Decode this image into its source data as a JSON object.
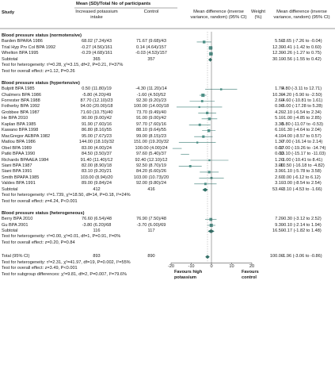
{
  "header": {
    "study": "Study",
    "group": "Mean (SD)/Total No of participants",
    "increased": "Increased potassium intake",
    "control": "Control",
    "md": "Mean difference (inverse variance, random) (95% CI)",
    "weight": "Weight (%)",
    "md2": "Mean difference (inverse variance, random) (95% CI)"
  },
  "chart_data": {
    "type": "forest",
    "x_axis": {
      "ticks": [
        -20,
        -10,
        0,
        10,
        20
      ],
      "xlim": [
        -20,
        20
      ]
    },
    "favours_left": "Favours high potassium",
    "favours_right": "Favours control",
    "groups": [
      {
        "title": "Blood pressure status (normotensive)",
        "studies": [
          {
            "name": "Barden BPARA 1986",
            "inc": "68.02 (7.24)/43",
            "ctl": "71.67 (9.68)/43",
            "weight": "5.50",
            "ci_text": "-3.65 (-7.26 to -0.04)",
            "md": -3.65,
            "lo": -7.26,
            "hi": -0.04,
            "w": 5.5
          },
          {
            "name": "Trial Hyp Prv Col BPA 1992",
            "inc": "-0.27 (4.56)/161",
            "ctl": "0.14 (4.64)/157",
            "weight": "12.30",
            "ci_text": "-0.41 (-1.42 to 0.60)",
            "md": -0.41,
            "lo": -1.42,
            "hi": 0.6,
            "w": 12.3
          },
          {
            "name": "Whelton BPA 1995",
            "inc": "-0.29 (4.68)/161",
            "ctl": "-0.03 (4.53)/157",
            "weight": "12.30",
            "ci_text": "-0.26 (-1.27 to 0.75)",
            "md": -0.26,
            "lo": -1.27,
            "hi": 0.75,
            "w": 12.3
          }
        ],
        "subtotal": {
          "label": "Subtotal",
          "inc": "365",
          "ctl": "357",
          "weight": "30.10",
          "ci_text": "-0.56 (-1.55 to 0.42)",
          "md": -0.56,
          "lo": -1.55,
          "hi": 0.42
        },
        "heterogeneity": "Test for heterogeneity: τ²=0.28, χ²=3.15, df=2, P=0.21, I²=37%",
        "overall": "Test for overall effect: z=1.12, P=0.26"
      },
      {
        "title": "Blood pressure status (hypertensive)",
        "studies": [
          {
            "name": "Bulpitt BPA 1985",
            "inc": "0.50 (11.80)/19",
            "ctl": "-4.30 (11.20)/14",
            "weight": "1.70",
            "ci_text": "4.80 (-3.11 to 12.71)",
            "md": 4.8,
            "lo": -3.11,
            "hi": 12.71,
            "w": 1.7
          },
          {
            "name": "Chalmers BPA 1986",
            "inc": "-5.80 (4.20)/49",
            "ctl": "-1.60 (4.50)/52",
            "weight": "10.30",
            "ci_text": "-4.20 (-5.90 to -2.50)",
            "md": -4.2,
            "lo": -5.9,
            "hi": -2.5,
            "w": 10.3
          },
          {
            "name": "Forrester BPA 1988",
            "inc": "87.70 (12.10)/23",
            "ctl": "92.30 (9.20)/23",
            "weight": "2.60",
            "ci_text": "-4.60 (-10.81 to 1.61)",
            "md": -4.6,
            "lo": -10.81,
            "hi": 1.61,
            "w": 2.6
          },
          {
            "name": "Fotherby BPA 1992",
            "inc": "94.00 (20.00)/18",
            "ctl": "100.00 (14.00)/18",
            "weight": "0.90",
            "ci_text": "-6.00 (-17.28 to 5.28)",
            "md": -6.0,
            "lo": -17.28,
            "hi": 5.28,
            "w": 0.9
          },
          {
            "name": "Grobbee BPA 1987",
            "inc": "71.60 (10.75)/40",
            "ctl": "73.70 (9.49)/40",
            "weight": "4.20",
            "ci_text": "-2.10 (-6.54 to 2.34)",
            "md": -2.1,
            "lo": -6.54,
            "hi": 2.34,
            "w": 4.2
          },
          {
            "name": "He BPA 2010",
            "inc": "90.00 (9.00)/42",
            "ctl": "91.00 (9.00)/42",
            "weight": "5.10",
            "ci_text": "-1.00 (-4.85 to 2.85)",
            "md": -1.0,
            "lo": -4.85,
            "hi": 2.85,
            "w": 5.1
          },
          {
            "name": "Kaplan BPA 1985",
            "inc": "91.90 (7.60)/16",
            "ctl": "97.70 (7.60)/16",
            "weight": "3.30",
            "ci_text": "-5.80 (-11.07 to -0.53)",
            "md": -5.8,
            "lo": -11.07,
            "hi": -0.53,
            "w": 3.3
          },
          {
            "name": "Kawano BPA 1998",
            "inc": "86.80 (8.16)/55",
            "ctl": "88.10 (9.64)/55",
            "weight": "6.10",
            "ci_text": "-1.30 (-4.64 to 2.04)",
            "md": -1.3,
            "lo": -4.64,
            "hi": 2.04,
            "w": 6.1
          },
          {
            "name": "MacGregor AEBPA 1982",
            "inc": "95.00 (7.67)/23",
            "ctl": "99.00 (8.15)/23",
            "weight": "4.10",
            "ci_text": "-4.00 (-8.57 to 0.57)",
            "md": -4.0,
            "lo": -8.57,
            "hi": 0.57,
            "w": 4.1
          },
          {
            "name": "Matlou BPA 1986",
            "inc": "144.00 (18.10)/32",
            "ctl": "151.00 (19.20)/32",
            "weight": "1.30",
            "ci_text": "-7.00 (-16.14 to 2.14)",
            "md": -7.0,
            "lo": -16.14,
            "hi": 2.14,
            "w": 1.3
          },
          {
            "name": "Obel BPA 1989",
            "inc": "83.00 (4.00)/24",
            "ctl": "100.00 (4.00)/24",
            "weight": "0.00",
            "ci_text": "-17.00 (-19.26 to -14.74)",
            "md": -17.0,
            "lo": -19.26,
            "hi": -14.74,
            "w": 0.0
          },
          {
            "name": "Patki BPAA 1990",
            "inc": "84.50 (3.50)/37",
            "ctl": "97.60 (5.40)/37",
            "weight": "0.00",
            "ci_text": "-13.10 (-15.17 to -11.03)",
            "md": -13.1,
            "lo": -15.17,
            "hi": -11.03,
            "w": 0.0
          },
          {
            "name": "Richards BPAAEA 1984",
            "inc": "91.40 (11.40)/12",
            "ctl": "92.40 (12.10)/12",
            "weight": "1.20",
            "ci_text": "-1.00 (-10.41 to 8.41)",
            "md": -1.0,
            "lo": -10.41,
            "hi": 8.41,
            "w": 1.2
          },
          {
            "name": "Siani BPA 1987",
            "inc": "82.00 (8.90)/18",
            "ctl": "92.50 (8.70)/19",
            "weight": "3.00",
            "ci_text": "-10.50 (-16.18 to -4.82)",
            "md": -10.5,
            "lo": -16.18,
            "hi": -4.82,
            "w": 3.0
          },
          {
            "name": "Siani BPA 1991",
            "inc": "83.10 (9.20)/21",
            "ctl": "84.20 (6.60)/26",
            "weight": "3.90",
            "ci_text": "-1.10 (-5.78 to 3.58)",
            "md": -1.1,
            "lo": -5.78,
            "hi": 3.58,
            "w": 3.9
          },
          {
            "name": "Smith BPAPA 1985",
            "inc": "103.00 (8.94)/20",
            "ctl": "103.00 (10.73)/20",
            "weight": "2.60",
            "ci_text": "0.00 (-6.12 to 6.12)",
            "md": 0.0,
            "lo": -6.12,
            "hi": 6.12,
            "w": 2.6
          },
          {
            "name": "Valdes BPA 1991",
            "inc": "89.00 (9.84)/24",
            "ctl": "92.00 (9.80)/24",
            "weight": "3.10",
            "ci_text": "-3.00 (-8.54 to 2.54)",
            "md": -3.0,
            "lo": -8.54,
            "hi": 2.54,
            "w": 3.1
          }
        ],
        "subtotal": {
          "label": "Subtotal",
          "inc": "412",
          "ctl": "416",
          "weight": "53.40",
          "ci_text": "-3.10 (-4.53 to -1.66)",
          "md": -3.1,
          "lo": -4.53,
          "hi": -1.66
        },
        "heterogeneity": "Test for heterogeneity: τ²=1.739, χ²=18.50, df=14, P=0.18, I²=24%",
        "overall": "Test for overall effect: z=4.24, P<0.001"
      },
      {
        "title": "Blood pressure status (heterogeneous)",
        "studies": [
          {
            "name": "Berry BPA 2010",
            "inc": "76.60 (6.54)/48",
            "ctl": "76.90 (7.50)/48",
            "weight": "7.20",
            "ci_text": "-0.30 (-3.12 to 2.52)",
            "md": -0.3,
            "lo": -3.12,
            "hi": 2.52,
            "w": 7.2
          },
          {
            "name": "Gu BPA 2001",
            "inc": "-3.80 (6.20)/68",
            "ctl": "-3.70 (6.00)/69",
            "weight": "9.30",
            "ci_text": "-0.10 (-2.14 to 1.94)",
            "md": -0.1,
            "lo": -2.14,
            "hi": 1.94,
            "w": 9.3
          }
        ],
        "subtotal": {
          "label": "Subtotal",
          "inc": "116",
          "ctl": "117",
          "weight": "16.50",
          "ci_text": "-0.17 (-1.82 to 1.48)",
          "md": -0.17,
          "lo": -1.82,
          "hi": 1.48
        },
        "heterogeneity": "Test for heterogeneity: τ²=0.00, χ²=0.01, df=1, P=0.91, I²=0%",
        "overall": "Test for overall effect: z=0.20, P=0.84"
      }
    ],
    "total": {
      "label": "Total (95% CI)",
      "inc": "893",
      "ctl": "890",
      "weight": "100.00",
      "ci_text": "-1.96 (-3.06 to -0.86)",
      "md": -1.96,
      "lo": -3.06,
      "hi": -0.86
    },
    "total_tests": [
      "Test for heterogeneity: τ²=2.31, χ²=41.97, df=19, P=0.002, I²=55%",
      "Test for overall effect: z=3.49, P<0.001",
      "Test for subgroup differences: χ²=9.81, df=2, P=0.007, I²=79.6%"
    ]
  }
}
